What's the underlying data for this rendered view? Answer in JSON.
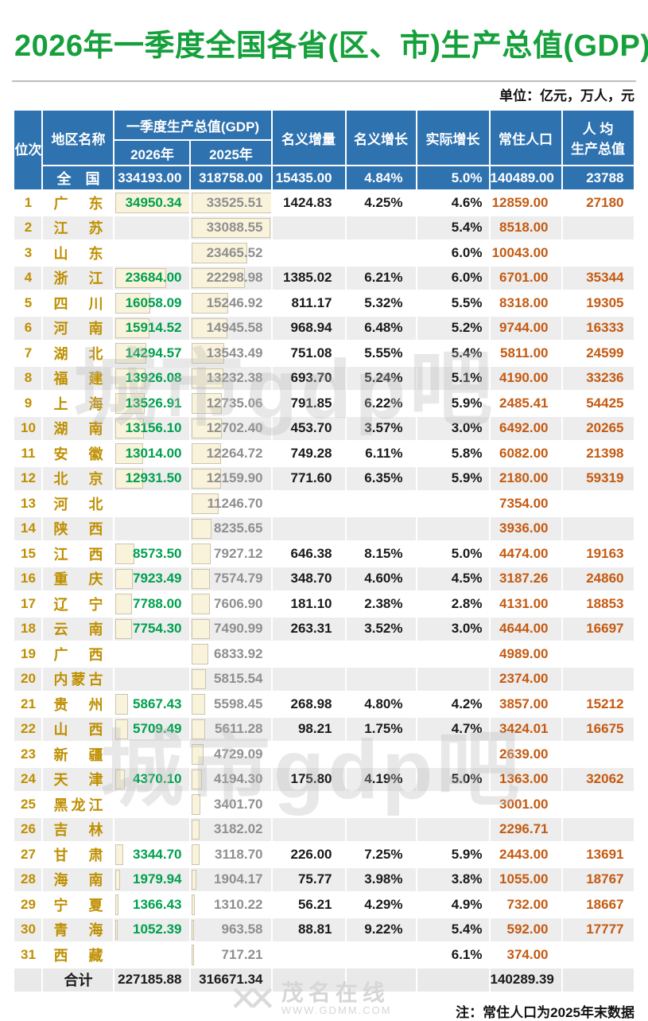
{
  "title": "2026年一季度全国各省(区、市)生产总值(GDP)",
  "units_note": "单位：亿元，万人，元",
  "footnote": "注：常住人口为2025年末数据",
  "watermarks": {
    "big": "城市gdp吧",
    "site_name": "茂名在线",
    "site_url": "WWW.GDMM.COM",
    "mark_glyph": "✕✕"
  },
  "colors": {
    "title_green": "#16a03c",
    "header_blue": "#2e72b0",
    "gold": "#bf8f00",
    "value_green": "#00a04e",
    "value_gray": "#8f8f8f",
    "value_orange": "#c55a11",
    "bar_fill": "#faf3dc",
    "stripe_gray": "#ededed"
  },
  "chart_data": {
    "type": "table",
    "title": "2026年一季度全国各省(区、市)生产总值(GDP)",
    "header": {
      "rank": "位次",
      "region": "地区名称",
      "gdp_group": "一季度生产总值(GDP)",
      "col_2026": "2026年",
      "col_2025": "2025年",
      "increment": "名义增量",
      "nominal_growth": "名义增长",
      "real_growth": "实际增长",
      "population": "常住人口",
      "per_capita_line1": "人 均",
      "per_capita_line2": "生产总值"
    },
    "national": {
      "region": "全国",
      "gdp2026": "334193.00",
      "gdp2025": "318758.00",
      "increment": "15435.00",
      "nominal_growth": "4.84%",
      "real_growth": "5.0%",
      "population": "140489.00",
      "per_capita": "23788"
    },
    "rows": [
      {
        "rank": "1",
        "region": "广东",
        "gdp2026": "34950.34",
        "gdp2025": "33525.51",
        "increment": "1424.83",
        "nominal_growth": "4.25%",
        "real_growth": "4.6%",
        "population": "12859.00",
        "per_capita": "27180"
      },
      {
        "rank": "2",
        "region": "江苏",
        "gdp2026": "",
        "gdp2025": "33088.55",
        "increment": "",
        "nominal_growth": "",
        "real_growth": "5.4%",
        "population": "8518.00",
        "per_capita": ""
      },
      {
        "rank": "3",
        "region": "山东",
        "gdp2026": "",
        "gdp2025": "23465.52",
        "increment": "",
        "nominal_growth": "",
        "real_growth": "6.0%",
        "population": "10043.00",
        "per_capita": ""
      },
      {
        "rank": "4",
        "region": "浙江",
        "gdp2026": "23684.00",
        "gdp2025": "22298.98",
        "increment": "1385.02",
        "nominal_growth": "6.21%",
        "real_growth": "6.0%",
        "population": "6701.00",
        "per_capita": "35344"
      },
      {
        "rank": "5",
        "region": "四川",
        "gdp2026": "16058.09",
        "gdp2025": "15246.92",
        "increment": "811.17",
        "nominal_growth": "5.32%",
        "real_growth": "5.5%",
        "population": "8318.00",
        "per_capita": "19305"
      },
      {
        "rank": "6",
        "region": "河南",
        "gdp2026": "15914.52",
        "gdp2025": "14945.58",
        "increment": "968.94",
        "nominal_growth": "6.48%",
        "real_growth": "5.2%",
        "population": "9744.00",
        "per_capita": "16333"
      },
      {
        "rank": "7",
        "region": "湖北",
        "gdp2026": "14294.57",
        "gdp2025": "13543.49",
        "increment": "751.08",
        "nominal_growth": "5.55%",
        "real_growth": "5.4%",
        "population": "5811.00",
        "per_capita": "24599"
      },
      {
        "rank": "8",
        "region": "福建",
        "gdp2026": "13926.08",
        "gdp2025": "13232.38",
        "increment": "693.70",
        "nominal_growth": "5.24%",
        "real_growth": "5.1%",
        "population": "4190.00",
        "per_capita": "33236"
      },
      {
        "rank": "9",
        "region": "上海",
        "gdp2026": "13526.91",
        "gdp2025": "12735.06",
        "increment": "791.85",
        "nominal_growth": "6.22%",
        "real_growth": "5.9%",
        "population": "2485.41",
        "per_capita": "54425"
      },
      {
        "rank": "10",
        "region": "湖南",
        "gdp2026": "13156.10",
        "gdp2025": "12702.40",
        "increment": "453.70",
        "nominal_growth": "3.57%",
        "real_growth": "3.0%",
        "population": "6492.00",
        "per_capita": "20265"
      },
      {
        "rank": "11",
        "region": "安徽",
        "gdp2026": "13014.00",
        "gdp2025": "12264.72",
        "increment": "749.28",
        "nominal_growth": "6.11%",
        "real_growth": "5.8%",
        "population": "6082.00",
        "per_capita": "21398"
      },
      {
        "rank": "12",
        "region": "北京",
        "gdp2026": "12931.50",
        "gdp2025": "12159.90",
        "increment": "771.60",
        "nominal_growth": "6.35%",
        "real_growth": "5.9%",
        "population": "2180.00",
        "per_capita": "59319"
      },
      {
        "rank": "13",
        "region": "河北",
        "gdp2026": "",
        "gdp2025": "11246.70",
        "increment": "",
        "nominal_growth": "",
        "real_growth": "",
        "population": "7354.00",
        "per_capita": ""
      },
      {
        "rank": "14",
        "region": "陕西",
        "gdp2026": "",
        "gdp2025": "8235.65",
        "increment": "",
        "nominal_growth": "",
        "real_growth": "",
        "population": "3936.00",
        "per_capita": ""
      },
      {
        "rank": "15",
        "region": "江西",
        "gdp2026": "8573.50",
        "gdp2025": "7927.12",
        "increment": "646.38",
        "nominal_growth": "8.15%",
        "real_growth": "5.0%",
        "population": "4474.00",
        "per_capita": "19163"
      },
      {
        "rank": "16",
        "region": "重庆",
        "gdp2026": "7923.49",
        "gdp2025": "7574.79",
        "increment": "348.70",
        "nominal_growth": "4.60%",
        "real_growth": "4.5%",
        "population": "3187.26",
        "per_capita": "24860"
      },
      {
        "rank": "17",
        "region": "辽宁",
        "gdp2026": "7788.00",
        "gdp2025": "7606.90",
        "increment": "181.10",
        "nominal_growth": "2.38%",
        "real_growth": "2.8%",
        "population": "4131.00",
        "per_capita": "18853"
      },
      {
        "rank": "18",
        "region": "云南",
        "gdp2026": "7754.30",
        "gdp2025": "7490.99",
        "increment": "263.31",
        "nominal_growth": "3.52%",
        "real_growth": "3.0%",
        "population": "4644.00",
        "per_capita": "16697"
      },
      {
        "rank": "19",
        "region": "广西",
        "gdp2026": "",
        "gdp2025": "6833.92",
        "increment": "",
        "nominal_growth": "",
        "real_growth": "",
        "population": "4989.00",
        "per_capita": ""
      },
      {
        "rank": "20",
        "region": "内蒙古",
        "gdp2026": "",
        "gdp2025": "5815.54",
        "increment": "",
        "nominal_growth": "",
        "real_growth": "",
        "population": "2374.00",
        "per_capita": ""
      },
      {
        "rank": "21",
        "region": "贵州",
        "gdp2026": "5867.43",
        "gdp2025": "5598.45",
        "increment": "268.98",
        "nominal_growth": "4.80%",
        "real_growth": "4.2%",
        "population": "3857.00",
        "per_capita": "15212"
      },
      {
        "rank": "22",
        "region": "山西",
        "gdp2026": "5709.49",
        "gdp2025": "5611.28",
        "increment": "98.21",
        "nominal_growth": "1.75%",
        "real_growth": "4.7%",
        "population": "3424.01",
        "per_capita": "16675"
      },
      {
        "rank": "23",
        "region": "新疆",
        "gdp2026": "",
        "gdp2025": "4729.09",
        "increment": "",
        "nominal_growth": "",
        "real_growth": "",
        "population": "2639.00",
        "per_capita": ""
      },
      {
        "rank": "24",
        "region": "天津",
        "gdp2026": "4370.10",
        "gdp2025": "4194.30",
        "increment": "175.80",
        "nominal_growth": "4.19%",
        "real_growth": "5.0%",
        "population": "1363.00",
        "per_capita": "32062"
      },
      {
        "rank": "25",
        "region": "黑龙江",
        "gdp2026": "",
        "gdp2025": "3401.70",
        "increment": "",
        "nominal_growth": "",
        "real_growth": "",
        "population": "3001.00",
        "per_capita": ""
      },
      {
        "rank": "26",
        "region": "吉林",
        "gdp2026": "",
        "gdp2025": "3182.02",
        "increment": "",
        "nominal_growth": "",
        "real_growth": "",
        "population": "2296.71",
        "per_capita": ""
      },
      {
        "rank": "27",
        "region": "甘肃",
        "gdp2026": "3344.70",
        "gdp2025": "3118.70",
        "increment": "226.00",
        "nominal_growth": "7.25%",
        "real_growth": "5.9%",
        "population": "2443.00",
        "per_capita": "13691"
      },
      {
        "rank": "28",
        "region": "海南",
        "gdp2026": "1979.94",
        "gdp2025": "1904.17",
        "increment": "75.77",
        "nominal_growth": "3.98%",
        "real_growth": "3.8%",
        "population": "1055.00",
        "per_capita": "18767"
      },
      {
        "rank": "29",
        "region": "宁夏",
        "gdp2026": "1366.43",
        "gdp2025": "1310.22",
        "increment": "56.21",
        "nominal_growth": "4.29%",
        "real_growth": "4.9%",
        "population": "732.00",
        "per_capita": "18667"
      },
      {
        "rank": "30",
        "region": "青海",
        "gdp2026": "1052.39",
        "gdp2025": "963.58",
        "increment": "88.81",
        "nominal_growth": "9.22%",
        "real_growth": "5.4%",
        "population": "592.00",
        "per_capita": "17777"
      },
      {
        "rank": "31",
        "region": "西藏",
        "gdp2026": "",
        "gdp2025": "717.21",
        "increment": "",
        "nominal_growth": "",
        "real_growth": "6.1%",
        "population": "374.00",
        "per_capita": ""
      }
    ],
    "total": {
      "label": "合计",
      "gdp2026": "227185.88",
      "gdp2025": "316671.34",
      "population": "140289.39"
    }
  }
}
